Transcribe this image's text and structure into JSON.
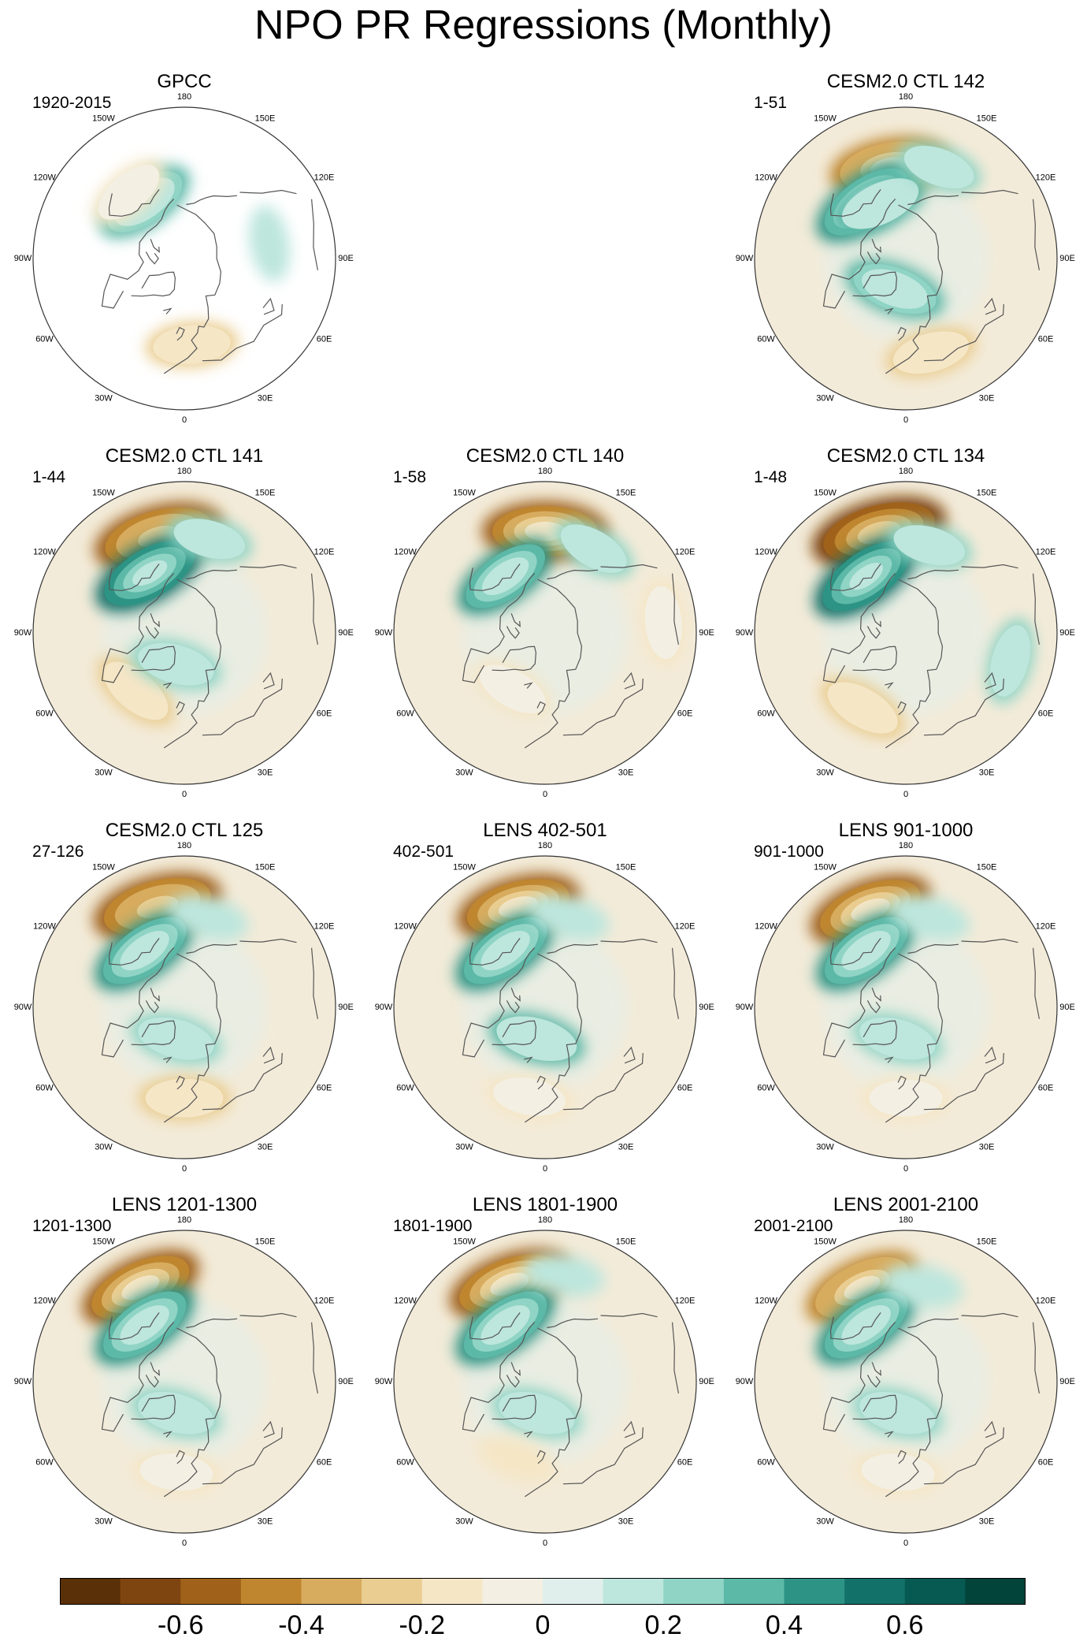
{
  "title": "NPO PR Regressions (Monthly)",
  "chart_data": {
    "type": "polar-stereographic contour maps (Northern Hemisphere)",
    "variable": "precipitation regressed on NPO index",
    "colorbar": {
      "levels": [
        -0.7,
        -0.6,
        -0.5,
        -0.4,
        -0.3,
        -0.2,
        -0.1,
        0,
        0.1,
        0.2,
        0.3,
        0.4,
        0.5,
        0.6,
        0.7
      ],
      "colors": [
        "#5a3008",
        "#7f4510",
        "#a0621a",
        "#bf862f",
        "#d7ac5f",
        "#eacd91",
        "#f5e6c6",
        "#f4efe3",
        "#e0efeb",
        "#bde6dd",
        "#8fd4c5",
        "#5cb8a7",
        "#2d9485",
        "#12726a",
        "#065a52",
        "#02433a"
      ],
      "tick_labels": [
        "-0.6",
        "-0.4",
        "-0.2",
        "0",
        "0.2",
        "0.4",
        "0.6"
      ],
      "tick_values": [
        -0.6,
        -0.4,
        -0.2,
        0,
        0.2,
        0.4,
        0.6
      ]
    },
    "longitude_labels": [
      "180",
      "150E",
      "120E",
      "90E",
      "60E",
      "30E",
      "0",
      "30W",
      "60W",
      "90W",
      "120W",
      "150W"
    ],
    "panels": [
      {
        "title": "GPCC",
        "period": "1920-2015",
        "observations": true,
        "features": [
          {
            "lon": 215,
            "lat": 58,
            "value": 0.35
          },
          {
            "lon": 5,
            "lat": 50,
            "value": -0.25
          },
          {
            "lon": 100,
            "lat": 50,
            "value": 0.1
          },
          {
            "lon": 220,
            "lat": 50,
            "value": -0.2
          }
        ]
      },
      {
        "title": "CESM2.0 CTL 142",
        "period": "1-51",
        "features": [
          {
            "lon": 190,
            "lat": 47,
            "value": -0.5
          },
          {
            "lon": 215,
            "lat": 58,
            "value": 0.45
          },
          {
            "lon": 205,
            "lat": 62,
            "value": 0.3
          },
          {
            "lon": 340,
            "lat": 75,
            "value": 0.35
          },
          {
            "lon": 15,
            "lat": 45,
            "value": -0.25
          },
          {
            "lon": 160,
            "lat": 45,
            "value": 0.2
          }
        ]
      },
      {
        "title": "CESM2.0 CTL 141",
        "period": "1-44",
        "features": [
          {
            "lon": 195,
            "lat": 44,
            "value": -0.6
          },
          {
            "lon": 210,
            "lat": 58,
            "value": 0.5
          },
          {
            "lon": 165,
            "lat": 45,
            "value": 0.2
          },
          {
            "lon": 320,
            "lat": 55,
            "value": -0.25
          },
          {
            "lon": 345,
            "lat": 75,
            "value": 0.25
          }
        ]
      },
      {
        "title": "CESM2.0 CTL 140",
        "period": "1-58",
        "features": [
          {
            "lon": 180,
            "lat": 43,
            "value": -0.55
          },
          {
            "lon": 215,
            "lat": 58,
            "value": 0.4
          },
          {
            "lon": 150,
            "lat": 45,
            "value": 0.2
          },
          {
            "lon": 95,
            "lat": 35,
            "value": -0.2
          },
          {
            "lon": 330,
            "lat": 60,
            "value": -0.2
          }
        ]
      },
      {
        "title": "CESM2.0 CTL 134",
        "period": "1-48",
        "features": [
          {
            "lon": 195,
            "lat": 42,
            "value": -0.65
          },
          {
            "lon": 215,
            "lat": 58,
            "value": 0.5
          },
          {
            "lon": 165,
            "lat": 48,
            "value": 0.2
          },
          {
            "lon": 330,
            "lat": 50,
            "value": -0.25
          },
          {
            "lon": 75,
            "lat": 40,
            "value": 0.2
          }
        ]
      },
      {
        "title": "CESM2.0 CTL 125",
        "period": "27-126",
        "features": [
          {
            "lon": 195,
            "lat": 42,
            "value": -0.6
          },
          {
            "lon": 215,
            "lat": 58,
            "value": 0.45
          },
          {
            "lon": 165,
            "lat": 47,
            "value": 0.15
          },
          {
            "lon": 345,
            "lat": 75,
            "value": 0.25
          },
          {
            "lon": 0,
            "lat": 48,
            "value": -0.25
          }
        ]
      },
      {
        "title": "LENS 402-501",
        "period": "402-501",
        "features": [
          {
            "lon": 195,
            "lat": 42,
            "value": -0.55
          },
          {
            "lon": 215,
            "lat": 58,
            "value": 0.45
          },
          {
            "lon": 165,
            "lat": 47,
            "value": 0.15
          },
          {
            "lon": 345,
            "lat": 75,
            "value": 0.3
          },
          {
            "lon": 350,
            "lat": 48,
            "value": -0.2
          }
        ]
      },
      {
        "title": "LENS 901-1000",
        "period": "901-1000",
        "features": [
          {
            "lon": 200,
            "lat": 42,
            "value": -0.55
          },
          {
            "lon": 215,
            "lat": 58,
            "value": 0.45
          },
          {
            "lon": 165,
            "lat": 47,
            "value": 0.15
          },
          {
            "lon": 345,
            "lat": 75,
            "value": 0.25
          },
          {
            "lon": 0,
            "lat": 48,
            "value": -0.2
          }
        ]
      },
      {
        "title": "LENS 1201-1300",
        "period": "1201-1300",
        "features": [
          {
            "lon": 205,
            "lat": 42,
            "value": -0.55
          },
          {
            "lon": 215,
            "lat": 58,
            "value": 0.45
          },
          {
            "lon": 345,
            "lat": 75,
            "value": 0.25
          },
          {
            "lon": 355,
            "lat": 48,
            "value": -0.2
          }
        ]
      },
      {
        "title": "LENS 1801-1900",
        "period": "1801-1900",
        "features": [
          {
            "lon": 200,
            "lat": 42,
            "value": -0.55
          },
          {
            "lon": 215,
            "lat": 58,
            "value": 0.45
          },
          {
            "lon": 170,
            "lat": 40,
            "value": 0.15
          },
          {
            "lon": 345,
            "lat": 75,
            "value": 0.25
          },
          {
            "lon": 340,
            "lat": 52,
            "value": -0.15
          }
        ]
      },
      {
        "title": "LENS 2001-2100",
        "period": "2001-2100",
        "features": [
          {
            "lon": 205,
            "lat": 42,
            "value": -0.5
          },
          {
            "lon": 215,
            "lat": 58,
            "value": 0.45
          },
          {
            "lon": 170,
            "lat": 45,
            "value": 0.15
          },
          {
            "lon": 345,
            "lat": 75,
            "value": 0.25
          },
          {
            "lon": 355,
            "lat": 48,
            "value": -0.2
          }
        ]
      }
    ]
  }
}
